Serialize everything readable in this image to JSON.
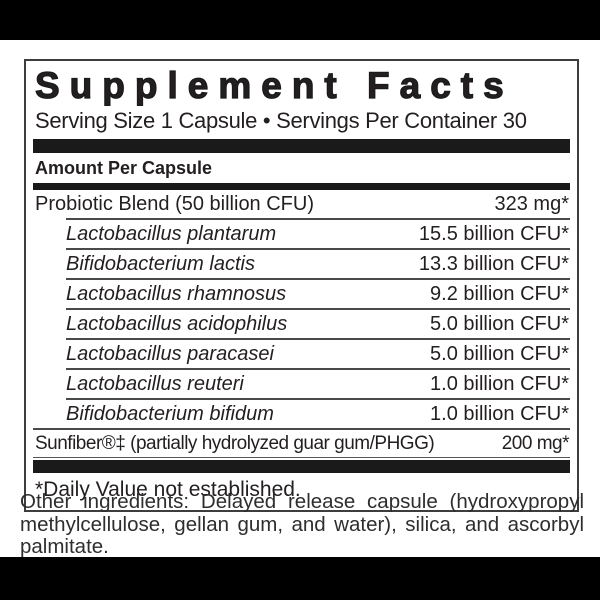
{
  "label": {
    "title": "Supplement Facts",
    "serving_line": "Serving Size 1 Capsule • Servings Per Container 30",
    "amount_header": "Amount Per Capsule",
    "rows": [
      {
        "name": "Probiotic Blend (50 billion CFU)",
        "value": "323 mg*"
      },
      {
        "name": "Lactobacillus plantarum",
        "value": "15.5 billion CFU*"
      },
      {
        "name": "Bifidobacterium lactis",
        "value": "13.3 billion CFU*"
      },
      {
        "name": "Lactobacillus rhamnosus",
        "value": "9.2 billion CFU*"
      },
      {
        "name": "Lactobacillus acidophilus",
        "value": "5.0 billion CFU*"
      },
      {
        "name": "Lactobacillus paracasei",
        "value": "5.0 billion CFU*"
      },
      {
        "name": "Lactobacillus reuteri",
        "value": "1.0 billion CFU*"
      },
      {
        "name": "Bifidobacterium bifidum",
        "value": "1.0 billion CFU*"
      },
      {
        "name": "Sunfiber®‡ (partially hydrolyzed guar gum/PHGG)",
        "value": "200 mg*"
      }
    ],
    "footnote": "*Daily Value not established."
  },
  "other_ingredients": "Other ingredients: Delayed release capsule (hydroxypropyl methylcellulose, gellan gum, and water), silica, and ascorbyl palmitate.",
  "colors": {
    "text": "#231f20",
    "divider_bar": "#1a1a1a",
    "box_border": "#3d3d3d",
    "background_band": "#000000"
  }
}
